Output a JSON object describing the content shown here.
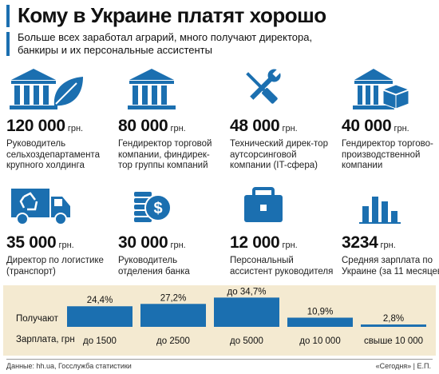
{
  "header": {
    "title": "Кому в Украине платят хорошо",
    "subtitle": "Больше всех заработал аграрий, много получают директора, банкиры и их персональные ассистенты"
  },
  "colors": {
    "accent": "#1b6fb0",
    "band": "#f4ead1"
  },
  "cards": [
    {
      "icon": "bank-leaf-icon",
      "amount": "120 000",
      "unit": "грн.",
      "description": "Руководитель сельхоздепартамента крупного холдинга"
    },
    {
      "icon": "bank-icon",
      "amount": "80 000",
      "unit": "грн.",
      "description": "Гендиректор торговой компании, финдирек-тор группы компаний"
    },
    {
      "icon": "wrench-screwdriver-icon",
      "amount": "48 000",
      "unit": "грн.",
      "description": "Технический дирек-тор аутсорсинговой компании (IT-сфера)"
    },
    {
      "icon": "bank-box-icon",
      "amount": "40 000",
      "unit": "грн.",
      "description": "Гендиректор торгово-производственной компании"
    },
    {
      "icon": "recycling-truck-icon",
      "amount": "35 000",
      "unit": "грн.",
      "description": "Директор по логистике (транспорт)"
    },
    {
      "icon": "coins-dollar-icon",
      "amount": "30 000",
      "unit": "грн.",
      "description": "Руководитель отделения банка"
    },
    {
      "icon": "briefcase-icon",
      "amount": "12 000",
      "unit": "грн.",
      "description": "Персональный ассистент руководителя"
    },
    {
      "icon": "bar-chart-icon",
      "amount": "3234",
      "unit": "грн.",
      "description": "Средняя зарплата по Украине (за 11 месяцев)"
    }
  ],
  "chart_data": {
    "type": "bar",
    "row_labels": {
      "top": "Получают",
      "bottom": "Зарплата, грн"
    },
    "categories": [
      "до 1500",
      "до 2500",
      "до 5000",
      "до 10 000",
      "свыше 10 000"
    ],
    "values": [
      24.4,
      27.2,
      34.7,
      10.9,
      2.8
    ],
    "value_labels": [
      "24,4%",
      "27,2%",
      "до 34,7%",
      "10,9%",
      "2,8%"
    ],
    "ylim": [
      0,
      36
    ],
    "color": "#1b6fb0"
  },
  "footer": {
    "source": "Данные: hh.ua, Госслужба статистики",
    "credit": "«Сегодня» | Е.П."
  }
}
